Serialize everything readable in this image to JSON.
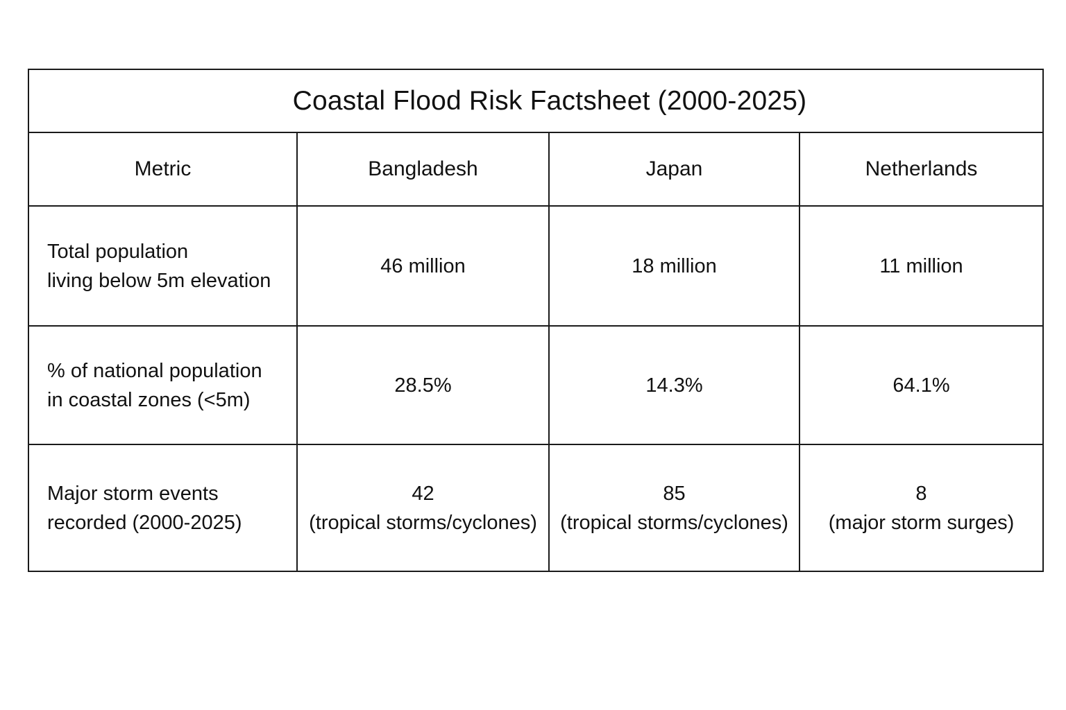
{
  "title": "Coastal Flood Risk Factsheet (2000-2025)",
  "headers": [
    "Metric",
    "Bangladesh",
    "Japan",
    "Netherlands"
  ],
  "rows": [
    {
      "metric": [
        "Total population",
        "living below 5m elevation"
      ],
      "values": [
        {
          "main": "46 million",
          "note": ""
        },
        {
          "main": "18 million",
          "note": ""
        },
        {
          "main": "11 million",
          "note": ""
        }
      ]
    },
    {
      "metric": [
        "% of national population",
        "in coastal zones (<5m)"
      ],
      "values": [
        {
          "main": "28.5%",
          "note": ""
        },
        {
          "main": "14.3%",
          "note": ""
        },
        {
          "main": "64.1%",
          "note": ""
        }
      ]
    },
    {
      "metric": [
        "Major storm events",
        "recorded (2000-2025)"
      ],
      "values": [
        {
          "main": "42",
          "note": "(tropical storms/cyclones)"
        },
        {
          "main": "85",
          "note": "(tropical storms/cyclones)"
        },
        {
          "main": "8",
          "note": "(major storm surges)"
        }
      ]
    }
  ]
}
